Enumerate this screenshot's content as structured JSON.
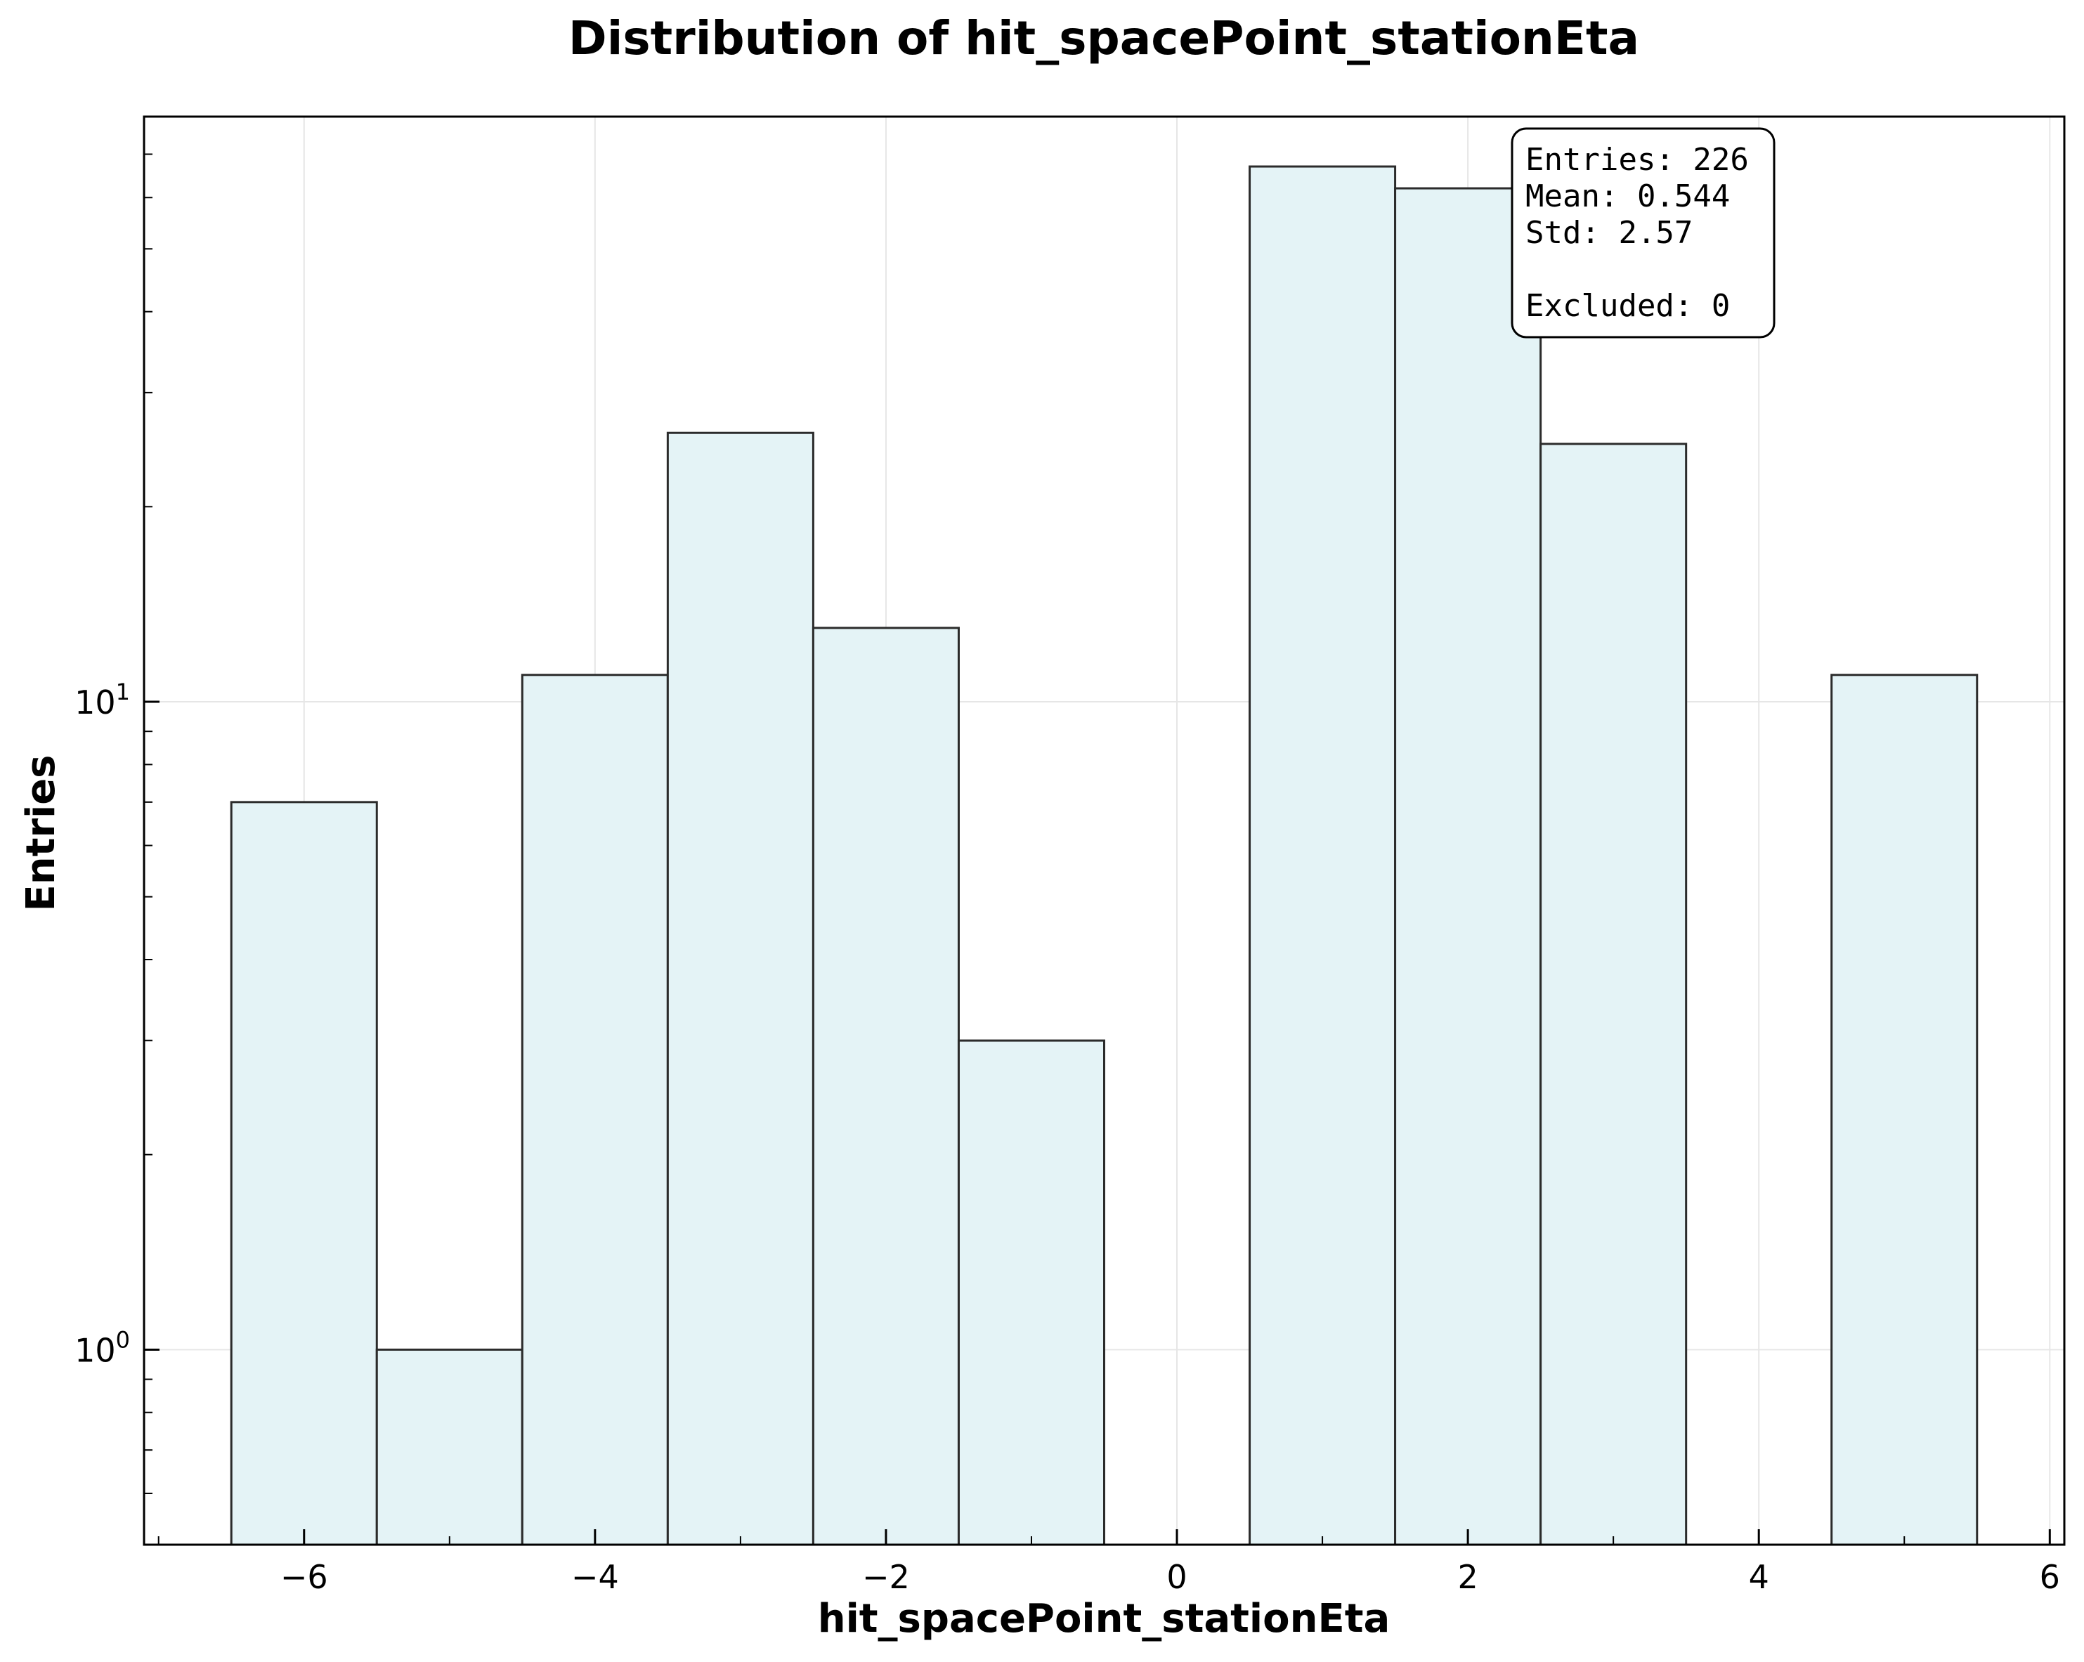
{
  "chart_data": {
    "type": "bar",
    "title": "Distribution of hit_spacePoint_stationEta",
    "xlabel": "hit_spacePoint_stationEta",
    "ylabel": "Entries",
    "y_scale": "log",
    "xlim": [
      -7.1,
      6.1
    ],
    "ylim": [
      0.5,
      80
    ],
    "grid": true,
    "bin_edges": [
      -6.5,
      -5.5,
      -4.5,
      -3.5,
      -2.5,
      -1.5,
      -0.5,
      0.5,
      1.5,
      2.5,
      3.5,
      4.5,
      5.5
    ],
    "values": [
      7,
      1,
      11,
      26,
      13,
      3,
      0,
      67,
      62,
      25,
      0,
      11
    ],
    "x_ticks": [
      -6,
      -4,
      -2,
      0,
      2,
      4,
      6
    ],
    "x_tick_labels": [
      "−6",
      "−4",
      "−2",
      "0",
      "2",
      "4",
      "6"
    ],
    "y_ticks": [
      1,
      10
    ],
    "y_tick_labels": [
      {
        "base": "10",
        "exp": "0"
      },
      {
        "base": "10",
        "exp": "1"
      }
    ],
    "bar_fill": "#e4f3f6",
    "bar_edge": "#2b2b2b",
    "stats": {
      "entries": "Entries: 226",
      "mean": "Mean: 0.544",
      "std": "Std: 2.57",
      "excluded": "Excluded: 0"
    }
  }
}
